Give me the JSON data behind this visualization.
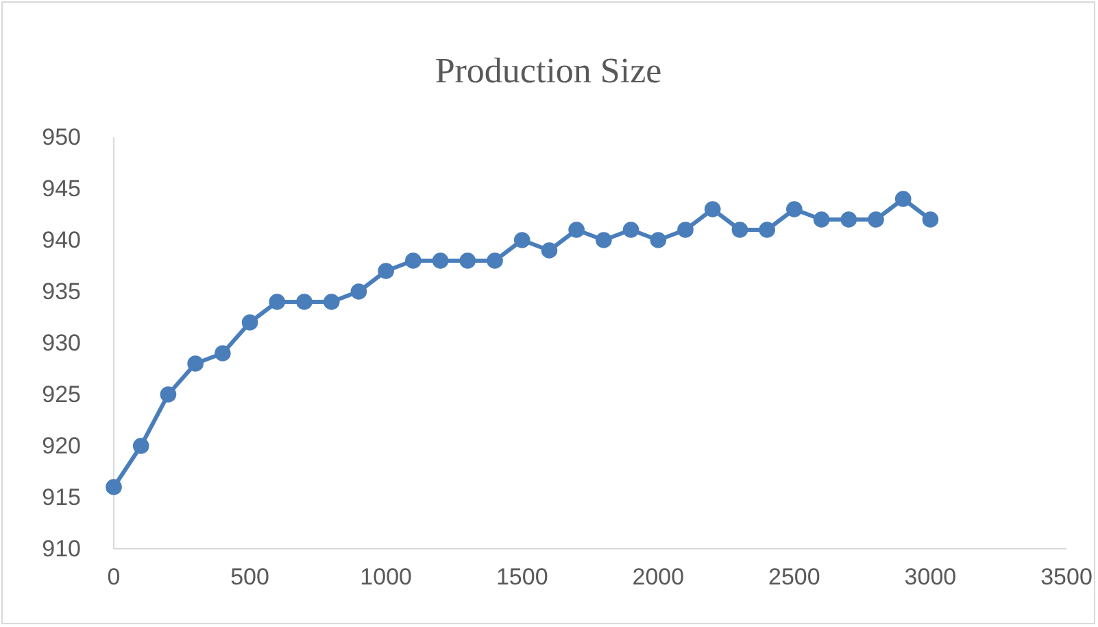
{
  "chart_data": {
    "type": "line",
    "title": "Production Size",
    "x": [
      0,
      100,
      200,
      300,
      400,
      500,
      600,
      700,
      800,
      900,
      1000,
      1100,
      1200,
      1300,
      1400,
      1500,
      1600,
      1700,
      1800,
      1900,
      2000,
      2100,
      2200,
      2300,
      2400,
      2500,
      2600,
      2700,
      2800,
      2900,
      3000
    ],
    "series": [
      {
        "color": "#4a7ebb",
        "values": [
          916,
          920,
          925,
          928,
          929,
          932,
          934,
          934,
          934,
          935,
          937,
          938,
          938,
          938,
          938,
          940,
          939,
          941,
          940,
          941,
          940,
          941,
          943,
          941,
          941,
          943,
          942,
          942,
          942,
          944,
          942
        ]
      }
    ],
    "xlim": [
      0,
      3500
    ],
    "xticks": [
      0,
      500,
      1000,
      1500,
      2000,
      2500,
      3000,
      3500
    ],
    "ylim": [
      910,
      950
    ],
    "yticks": [
      910,
      915,
      920,
      925,
      930,
      935,
      940,
      945,
      950
    ],
    "marker": "circle",
    "line_style": "solid"
  }
}
